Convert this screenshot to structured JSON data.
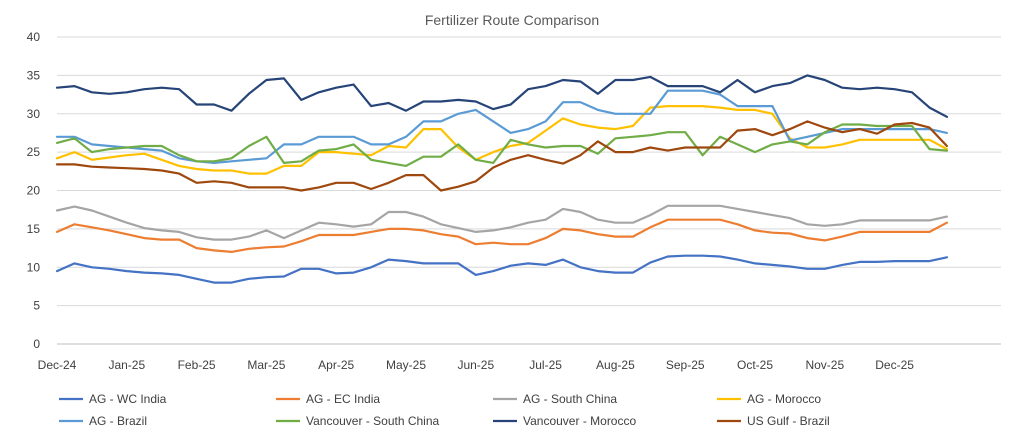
{
  "chart_data": {
    "type": "line",
    "title": "Fertilizer Route Comparison",
    "xlabel": "",
    "ylabel": "",
    "ylim": [
      0,
      40
    ],
    "yticks": [
      0,
      5,
      10,
      15,
      20,
      25,
      30,
      35,
      40
    ],
    "grid": true,
    "legend_position": "bottom",
    "x_tick_labels": [
      "Dec-24",
      "Jan-25",
      "Feb-25",
      "Mar-25",
      "Apr-25",
      "May-25",
      "Jun-25",
      "Jul-25",
      "Aug-25",
      "Sep-25",
      "Oct-25",
      "Nov-25",
      "Dec-25"
    ],
    "x_tick_index": [
      0,
      4,
      8,
      12,
      16,
      20,
      24,
      28,
      32,
      36,
      40,
      44,
      48
    ],
    "n_points": 52,
    "colors": {
      "AG - WC India": "#4472c4",
      "AG - EC India": "#ed7d31",
      "AG - South China": "#a5a5a5",
      "AG - Morocco": "#ffc000",
      "AG - Brazil": "#5b9bd5",
      "Vancouver - South China": "#70ad47",
      "Vancouver - Morocco": "#264478",
      "US Gulf - Brazil": "#9e480e"
    },
    "series": [
      {
        "name": "AG - WC India",
        "values": [
          9.5,
          10.5,
          10,
          9.8,
          9.5,
          9.3,
          9.2,
          9,
          8.5,
          8,
          8,
          8.5,
          8.7,
          8.8,
          9.8,
          9.8,
          9.2,
          9.3,
          10,
          11,
          10.8,
          10.5,
          10.5,
          10.5,
          9,
          9.5,
          10.2,
          10.5,
          10.3,
          11,
          10,
          9.5,
          9.3,
          9.3,
          10.6,
          11.4,
          11.5,
          11.5,
          11.4,
          11,
          10.5,
          10.3,
          10.1,
          9.8,
          9.8,
          10.3,
          10.7,
          10.7,
          10.8,
          10.8,
          10.8,
          11.3
        ]
      },
      {
        "name": "AG - EC India",
        "values": [
          14.6,
          15.6,
          15.2,
          14.8,
          14.3,
          13.8,
          13.6,
          13.6,
          12.5,
          12.2,
          12,
          12.4,
          12.6,
          12.7,
          13.4,
          14.2,
          14.2,
          14.2,
          14.6,
          15,
          15,
          14.8,
          14.3,
          14,
          13,
          13.2,
          13,
          13,
          13.8,
          15,
          14.8,
          14.3,
          14,
          14,
          15.2,
          16.2,
          16.2,
          16.2,
          16.2,
          15.6,
          14.8,
          14.5,
          14.4,
          13.8,
          13.5,
          14,
          14.6,
          14.6,
          14.6,
          14.6,
          14.6,
          15.8
        ]
      },
      {
        "name": "AG - South China",
        "values": [
          17.4,
          17.9,
          17.4,
          16.6,
          15.8,
          15.1,
          14.8,
          14.6,
          13.9,
          13.6,
          13.6,
          14,
          14.8,
          13.8,
          14.8,
          15.8,
          15.6,
          15.3,
          15.6,
          17.2,
          17.2,
          16.6,
          15.6,
          15.1,
          14.6,
          14.8,
          15.2,
          15.8,
          16.2,
          17.6,
          17.2,
          16.2,
          15.8,
          15.8,
          16.8,
          18,
          18,
          18,
          18,
          17.6,
          17.2,
          16.8,
          16.4,
          15.6,
          15.4,
          15.6,
          16.1,
          16.1,
          16.1,
          16.1,
          16.1,
          16.6
        ]
      },
      {
        "name": "AG - Morocco",
        "values": [
          24.2,
          25,
          24,
          24.3,
          24.6,
          24.8,
          24,
          23.2,
          22.8,
          22.6,
          22.6,
          22.2,
          22.2,
          23.2,
          23.2,
          25,
          25,
          24.8,
          24.6,
          25.8,
          25.6,
          28,
          28,
          25.6,
          24,
          25,
          25.8,
          26.2,
          27.8,
          29.4,
          28.6,
          28.2,
          28,
          28.4,
          30.8,
          31,
          31,
          31,
          30.8,
          30.5,
          30.5,
          30,
          26.8,
          25.6,
          25.6,
          26,
          26.6,
          26.6,
          26.6,
          26.6,
          26.6,
          25.4
        ]
      },
      {
        "name": "AG - Brazil",
        "values": [
          27,
          27,
          26,
          25.8,
          25.6,
          25.4,
          25.2,
          24.2,
          23.8,
          23.6,
          23.8,
          24,
          24.2,
          26,
          26,
          27,
          27,
          27,
          26,
          26,
          27,
          29,
          29,
          30,
          30.5,
          29,
          27.5,
          28,
          29,
          31.5,
          31.5,
          30.5,
          30,
          30,
          30,
          33,
          33,
          33,
          32.5,
          31,
          31,
          31,
          26.5,
          27,
          27.5,
          28,
          28,
          28,
          28,
          28,
          28,
          27.5
        ]
      },
      {
        "name": "Vancouver - South China",
        "values": [
          26.2,
          26.8,
          25,
          25.4,
          25.6,
          25.8,
          25.8,
          24.6,
          23.8,
          23.8,
          24.2,
          25.8,
          27,
          23.6,
          23.8,
          25.2,
          25.4,
          26,
          24,
          23.6,
          23.2,
          24.4,
          24.4,
          26,
          24,
          23.6,
          26.6,
          26,
          25.6,
          25.8,
          25.8,
          24.8,
          26.8,
          27,
          27.2,
          27.6,
          27.6,
          24.6,
          27,
          26,
          25,
          26,
          26.4,
          26,
          27.6,
          28.6,
          28.6,
          28.4,
          28.4,
          28.4,
          25.4,
          25.2
        ]
      },
      {
        "name": "Vancouver - Morocco",
        "values": [
          33.4,
          33.6,
          32.8,
          32.6,
          32.8,
          33.2,
          33.4,
          33.2,
          31.2,
          31.2,
          30.4,
          32.6,
          34.4,
          34.6,
          31.8,
          32.8,
          33.4,
          33.8,
          31,
          31.4,
          30.4,
          31.6,
          31.6,
          31.8,
          31.6,
          30.6,
          31.2,
          33.2,
          33.6,
          34.4,
          34.2,
          32.6,
          34.4,
          34.4,
          34.8,
          33.6,
          33.6,
          33.6,
          32.8,
          34.4,
          32.8,
          33.6,
          34,
          35,
          34.4,
          33.4,
          33.2,
          33.4,
          33.2,
          32.8,
          30.8,
          29.6
        ]
      },
      {
        "name": "US Gulf - Brazil",
        "values": [
          23.4,
          23.4,
          23.1,
          23,
          22.9,
          22.8,
          22.6,
          22.2,
          21,
          21.2,
          21,
          20.4,
          20.4,
          20.4,
          20,
          20.4,
          21,
          21,
          20.2,
          21,
          22,
          22,
          20,
          20.5,
          21.2,
          23,
          24,
          24.6,
          24,
          23.5,
          24.6,
          26.4,
          25,
          25,
          25.6,
          25.2,
          25.6,
          25.6,
          25.6,
          27.8,
          28,
          27.2,
          28,
          29,
          28.2,
          27.6,
          28,
          27.4,
          28.6,
          28.8,
          28.2,
          25.8
        ]
      }
    ]
  }
}
